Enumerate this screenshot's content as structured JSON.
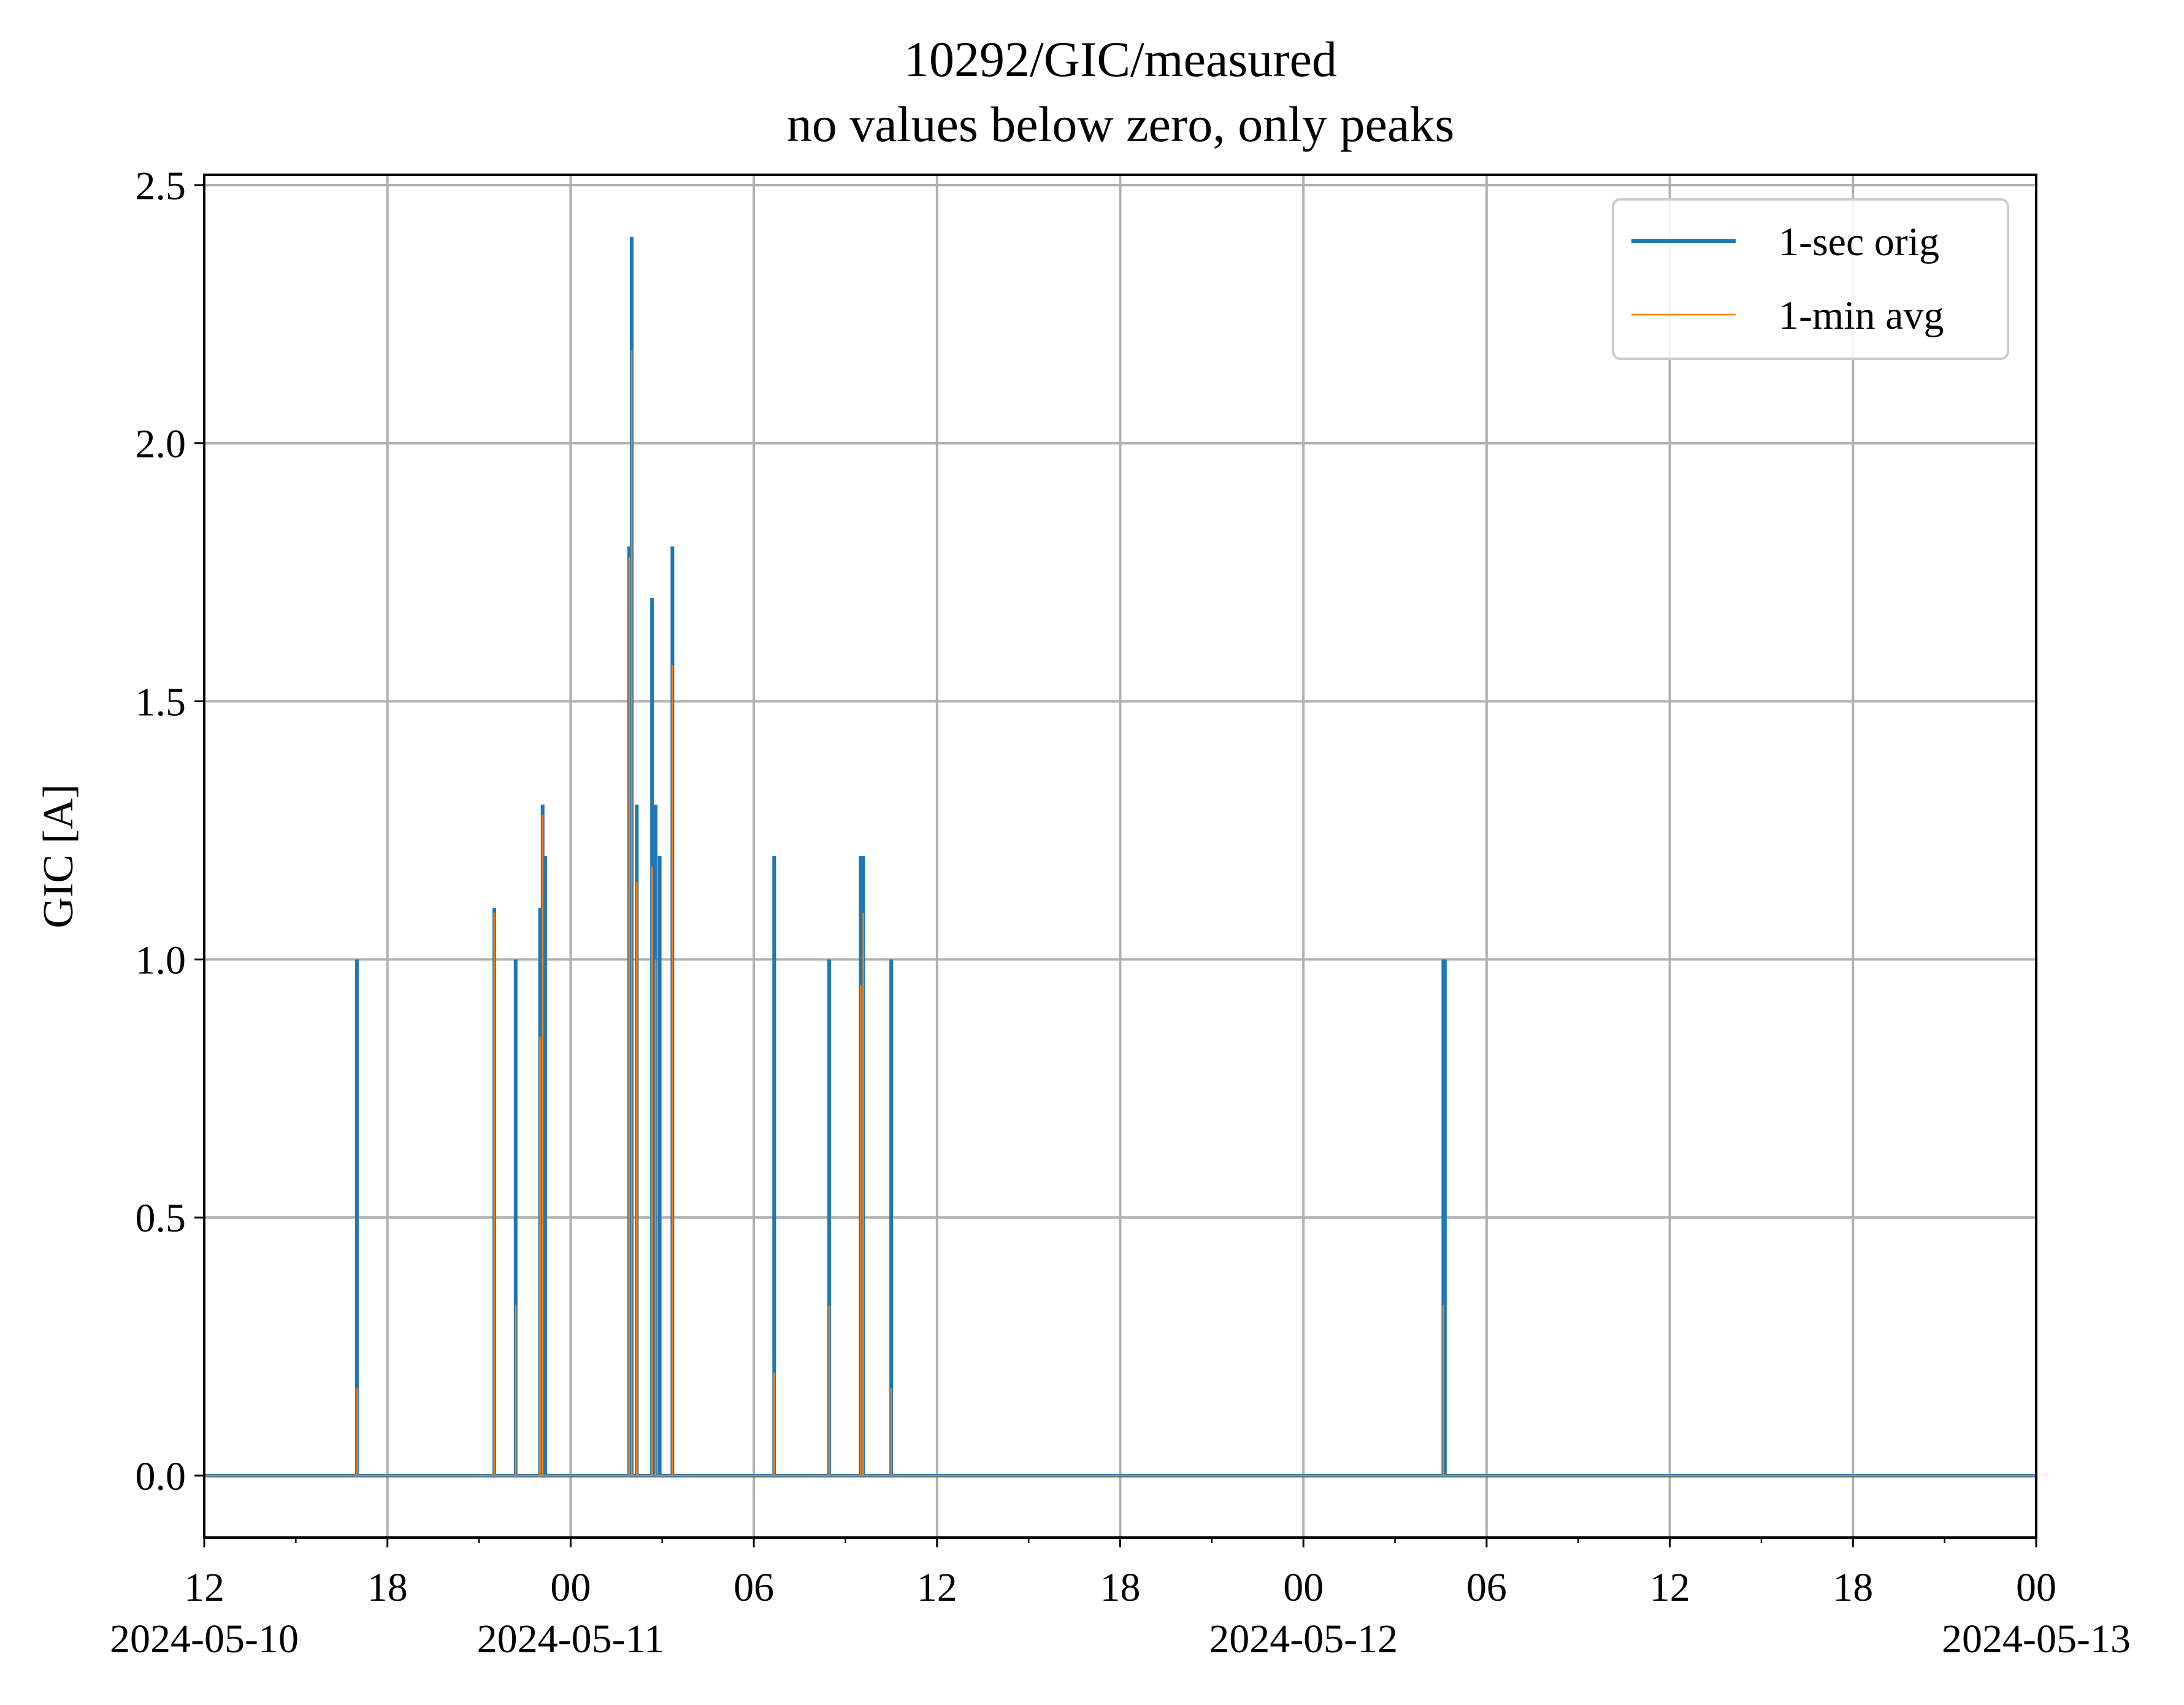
{
  "chart_data": {
    "type": "line",
    "title": "10292/GIC/measured",
    "subtitle": "no values below zero, only peaks",
    "xlabel": "",
    "ylabel": "GIC [A]",
    "x_range": [
      "2024-05-10T12:00",
      "2024-05-13T00:00"
    ],
    "ylim": [
      -0.12,
      2.52
    ],
    "y_ticks": [
      "0.0",
      "0.5",
      "1.0",
      "1.5",
      "2.0",
      "2.5"
    ],
    "y_tick_values": [
      0.0,
      0.5,
      1.0,
      1.5,
      2.0,
      2.5
    ],
    "x_ticks": [
      {
        "t": "2024-05-10T12:00",
        "label": "12",
        "date": "2024-05-10"
      },
      {
        "t": "2024-05-10T18:00",
        "label": "18",
        "date": ""
      },
      {
        "t": "2024-05-11T00:00",
        "label": "00",
        "date": "2024-05-11"
      },
      {
        "t": "2024-05-11T06:00",
        "label": "06",
        "date": ""
      },
      {
        "t": "2024-05-11T12:00",
        "label": "12",
        "date": ""
      },
      {
        "t": "2024-05-11T18:00",
        "label": "18",
        "date": ""
      },
      {
        "t": "2024-05-12T00:00",
        "label": "00",
        "date": "2024-05-12"
      },
      {
        "t": "2024-05-12T06:00",
        "label": "06",
        "date": ""
      },
      {
        "t": "2024-05-12T12:00",
        "label": "12",
        "date": ""
      },
      {
        "t": "2024-05-12T18:00",
        "label": "18",
        "date": ""
      },
      {
        "t": "2024-05-13T00:00",
        "label": "00",
        "date": "2024-05-13"
      }
    ],
    "grid": true,
    "legend_position": "top-right",
    "series": [
      {
        "name": "1-sec orig",
        "color": "#1f77b4",
        "peaks": [
          {
            "t": "2024-05-10T17:00",
            "value": 1.0
          },
          {
            "t": "2024-05-10T21:30",
            "value": 1.1
          },
          {
            "t": "2024-05-10T22:12",
            "value": 1.0
          },
          {
            "t": "2024-05-10T23:00",
            "value": 1.1
          },
          {
            "t": "2024-05-10T23:05",
            "value": 1.3
          },
          {
            "t": "2024-05-10T23:10",
            "value": 1.2
          },
          {
            "t": "2024-05-11T01:55",
            "value": 1.8
          },
          {
            "t": "2024-05-11T02:00",
            "value": 2.4
          },
          {
            "t": "2024-05-11T02:10",
            "value": 1.3
          },
          {
            "t": "2024-05-11T02:40",
            "value": 1.7
          },
          {
            "t": "2024-05-11T02:47",
            "value": 1.3
          },
          {
            "t": "2024-05-11T02:55",
            "value": 1.2
          },
          {
            "t": "2024-05-11T03:20",
            "value": 1.8
          },
          {
            "t": "2024-05-11T06:40",
            "value": 1.2
          },
          {
            "t": "2024-05-11T08:28",
            "value": 1.0
          },
          {
            "t": "2024-05-11T09:30",
            "value": 1.2
          },
          {
            "t": "2024-05-11T09:35",
            "value": 1.2
          },
          {
            "t": "2024-05-11T10:30",
            "value": 1.0
          },
          {
            "t": "2024-05-12T04:35",
            "value": 1.0
          },
          {
            "t": "2024-05-12T04:38",
            "value": 1.0
          }
        ]
      },
      {
        "name": "1-min avg",
        "color": "#ff7f0e",
        "peaks": [
          {
            "t": "2024-05-10T17:00",
            "value": 0.17
          },
          {
            "t": "2024-05-10T21:30",
            "value": 1.09
          },
          {
            "t": "2024-05-10T22:12",
            "value": 0.33
          },
          {
            "t": "2024-05-10T23:00",
            "value": 0.85
          },
          {
            "t": "2024-05-10T23:05",
            "value": 1.28
          },
          {
            "t": "2024-05-11T01:55",
            "value": 1.78
          },
          {
            "t": "2024-05-11T02:00",
            "value": 2.18
          },
          {
            "t": "2024-05-11T02:10",
            "value": 1.15
          },
          {
            "t": "2024-05-11T02:40",
            "value": 1.18
          },
          {
            "t": "2024-05-11T02:47",
            "value": 1.0
          },
          {
            "t": "2024-05-11T03:20",
            "value": 1.57
          },
          {
            "t": "2024-05-11T06:40",
            "value": 0.2
          },
          {
            "t": "2024-05-11T08:28",
            "value": 0.33
          },
          {
            "t": "2024-05-11T09:30",
            "value": 0.95
          },
          {
            "t": "2024-05-11T09:35",
            "value": 1.09
          },
          {
            "t": "2024-05-11T10:30",
            "value": 0.17
          },
          {
            "t": "2024-05-12T04:35",
            "value": 0.33
          }
        ]
      }
    ]
  }
}
